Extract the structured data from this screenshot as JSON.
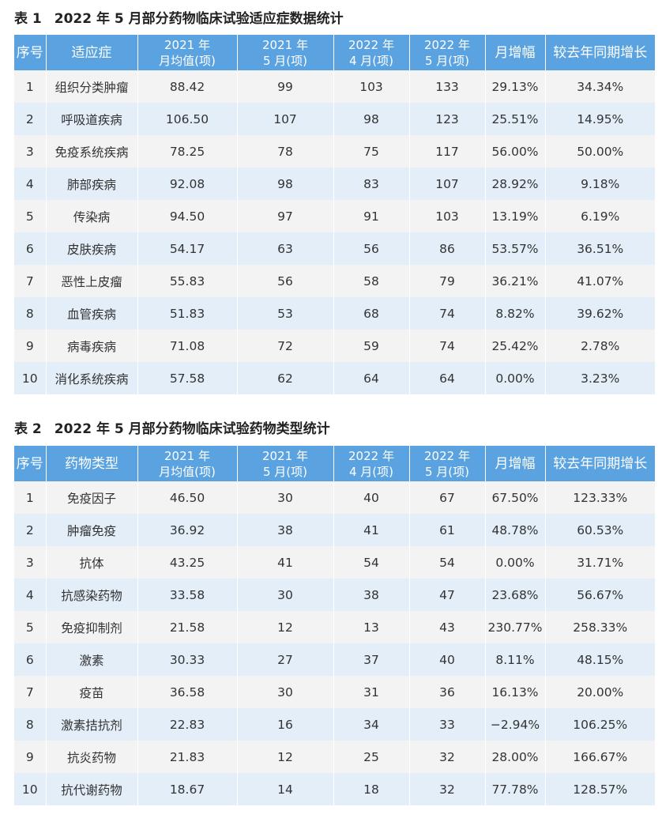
{
  "table1": {
    "caption_num": "表 1",
    "caption_text": "2022 年 5 月部分药物临床试验适应症数据统计",
    "headers": [
      "序号",
      "适应症",
      "2021 年",
      "月均值(项)",
      "2021 年",
      "5 月(项)",
      "2022 年",
      "4 月(项)",
      "2022 年",
      "5 月(项)",
      "月增幅",
      "较去年同期增长"
    ],
    "rows": [
      [
        "1",
        "组织分类肿瘤",
        "88.42",
        "99",
        "103",
        "133",
        "29.13%",
        "34.34%"
      ],
      [
        "2",
        "呼吸道疾病",
        "106.50",
        "107",
        "98",
        "123",
        "25.51%",
        "14.95%"
      ],
      [
        "3",
        "免疫系统疾病",
        "78.25",
        "78",
        "75",
        "117",
        "56.00%",
        "50.00%"
      ],
      [
        "4",
        "肺部疾病",
        "92.08",
        "98",
        "83",
        "107",
        "28.92%",
        "9.18%"
      ],
      [
        "5",
        "传染病",
        "94.50",
        "97",
        "91",
        "103",
        "13.19%",
        "6.19%"
      ],
      [
        "6",
        "皮肤疾病",
        "54.17",
        "63",
        "56",
        "86",
        "53.57%",
        "36.51%"
      ],
      [
        "7",
        "恶性上皮瘤",
        "55.83",
        "56",
        "58",
        "79",
        "36.21%",
        "41.07%"
      ],
      [
        "8",
        "血管疾病",
        "51.83",
        "53",
        "68",
        "74",
        "8.82%",
        "39.62%"
      ],
      [
        "9",
        "病毒疾病",
        "71.08",
        "72",
        "59",
        "74",
        "25.42%",
        "2.78%"
      ],
      [
        "10",
        "消化系统疾病",
        "57.58",
        "62",
        "64",
        "64",
        "0.00%",
        "3.23%"
      ]
    ]
  },
  "table2": {
    "caption_num": "表 2",
    "caption_text": "2022 年 5 月部分药物临床试验药物类型统计",
    "headers": [
      "序号",
      "药物类型",
      "2021 年",
      "月均值(项)",
      "2021 年",
      "5 月(项)",
      "2022 年",
      "4 月(项)",
      "2022 年",
      "5 月(项)",
      "月增幅",
      "较去年同期增长"
    ],
    "rows": [
      [
        "1",
        "免疫因子",
        "46.50",
        "30",
        "40",
        "67",
        "67.50%",
        "123.33%"
      ],
      [
        "2",
        "肿瘤免疫",
        "36.92",
        "38",
        "41",
        "61",
        "48.78%",
        "60.53%"
      ],
      [
        "3",
        "抗体",
        "43.25",
        "41",
        "54",
        "54",
        "0.00%",
        "31.71%"
      ],
      [
        "4",
        "抗感染药物",
        "33.58",
        "30",
        "38",
        "47",
        "23.68%",
        "56.67%"
      ],
      [
        "5",
        "免疫抑制剂",
        "21.58",
        "12",
        "13",
        "43",
        "230.77%",
        "258.33%"
      ],
      [
        "6",
        "激素",
        "30.33",
        "27",
        "37",
        "40",
        "8.11%",
        "48.15%"
      ],
      [
        "7",
        "疫苗",
        "36.58",
        "30",
        "31",
        "36",
        "16.13%",
        "20.00%"
      ],
      [
        "8",
        "激素拮抗剂",
        "22.83",
        "16",
        "34",
        "33",
        "−2.94%",
        "106.25%"
      ],
      [
        "9",
        "抗炎药物",
        "21.83",
        "12",
        "25",
        "32",
        "28.00%",
        "166.67%"
      ],
      [
        "10",
        "抗代谢药物",
        "18.67",
        "14",
        "18",
        "32",
        "77.78%",
        "128.57%"
      ]
    ]
  }
}
